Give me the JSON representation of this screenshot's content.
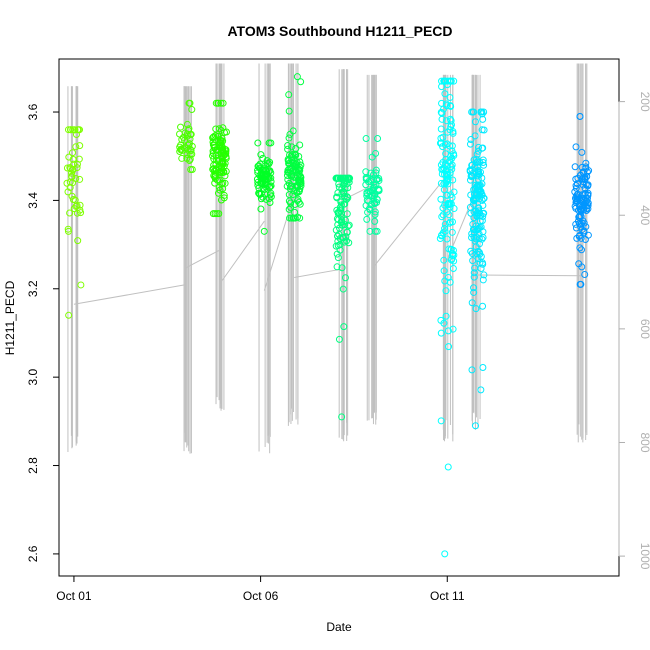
{
  "chart_data": {
    "type": "scatter",
    "title": "ATOM3 Southbound H1211_PECD",
    "xlabel": "Date",
    "ylabel": "H1211_PECD",
    "x_ticks": [
      {
        "label": "Oct 01",
        "value": 1
      },
      {
        "label": "Oct 06",
        "value": 6
      },
      {
        "label": "Oct 11",
        "value": 11
      }
    ],
    "xlim": [
      0.6,
      15.6
    ],
    "y_ticks": [
      2.6,
      2.8,
      3.0,
      3.2,
      3.4,
      3.6
    ],
    "ylim": [
      2.55,
      3.72
    ],
    "y2_ticks": [
      200,
      400,
      600,
      800,
      1000
    ],
    "y2lim": [
      1035,
      125
    ],
    "y2_reversed": true,
    "y2_color": "#b0b0b0",
    "profile_color": "#c0c0c0",
    "groups": [
      {
        "x": 1.0,
        "color": "#7fff00",
        "n": 50,
        "center": 3.45,
        "min": 3.14,
        "max": 3.56,
        "p_min": 180,
        "p_max": 800
      },
      {
        "x": 4.0,
        "color": "#4cff00",
        "n": 40,
        "center": 3.53,
        "min": 3.47,
        "max": 3.62,
        "p_min": 180,
        "p_max": 800
      },
      {
        "x": 4.9,
        "color": "#26ff00",
        "n": 120,
        "center": 3.5,
        "min": 3.37,
        "max": 3.62,
        "p_min": 140,
        "p_max": 730
      },
      {
        "x": 6.1,
        "color": "#00ff26",
        "n": 80,
        "center": 3.45,
        "min": 3.33,
        "max": 3.53,
        "p_min": 140,
        "p_max": 800
      },
      {
        "x": 6.9,
        "color": "#00ff40",
        "n": 110,
        "center": 3.45,
        "min": 3.36,
        "max": 3.68,
        "p_min": 140,
        "p_max": 760
      },
      {
        "x": 8.2,
        "color": "#00ff80",
        "n": 100,
        "center": 3.39,
        "min": 2.91,
        "max": 3.45,
        "p_min": 150,
        "p_max": 780
      },
      {
        "x": 9.0,
        "color": "#00ffa0",
        "n": 60,
        "center": 3.42,
        "min": 3.33,
        "max": 3.54,
        "p_min": 160,
        "p_max": 760
      },
      {
        "x": 11.0,
        "color": "#00ffff",
        "n": 140,
        "center": 3.45,
        "min": 2.6,
        "max": 3.67,
        "p_min": 160,
        "p_max": 780
      },
      {
        "x": 11.8,
        "color": "#00eaff",
        "n": 160,
        "center": 3.4,
        "min": 2.89,
        "max": 3.6,
        "p_min": 160,
        "p_max": 760
      },
      {
        "x": 14.6,
        "color": "#0096ff",
        "n": 110,
        "center": 3.41,
        "min": 3.21,
        "max": 3.59,
        "p_min": 140,
        "p_max": 780
      }
    ]
  }
}
